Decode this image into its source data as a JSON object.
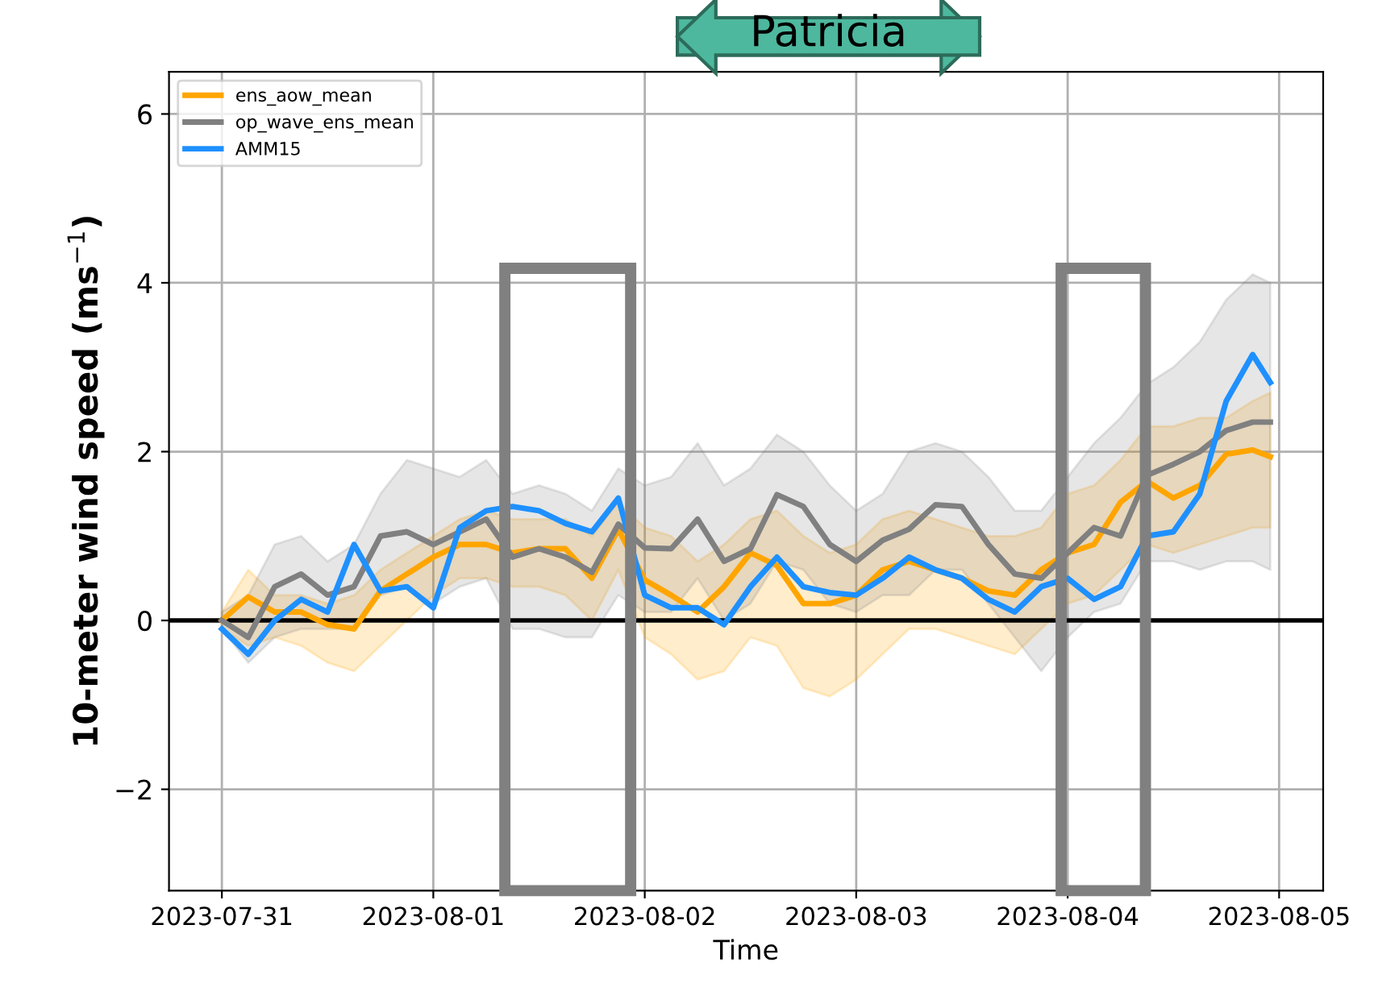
{
  "chart_data": {
    "type": "line",
    "x": [
      "2023-07-31T00:00",
      "2023-07-31T03:00",
      "2023-07-31T06:00",
      "2023-07-31T09:00",
      "2023-07-31T12:00",
      "2023-07-31T15:00",
      "2023-07-31T18:00",
      "2023-07-31T21:00",
      "2023-08-01T00:00",
      "2023-08-01T03:00",
      "2023-08-01T06:00",
      "2023-08-01T09:00",
      "2023-08-01T12:00",
      "2023-08-01T15:00",
      "2023-08-01T18:00",
      "2023-08-01T21:00",
      "2023-08-02T00:00",
      "2023-08-02T03:00",
      "2023-08-02T06:00",
      "2023-08-02T09:00",
      "2023-08-02T12:00",
      "2023-08-02T15:00",
      "2023-08-02T18:00",
      "2023-08-02T21:00",
      "2023-08-03T00:00",
      "2023-08-03T03:00",
      "2023-08-03T06:00",
      "2023-08-03T09:00",
      "2023-08-03T12:00",
      "2023-08-03T15:00",
      "2023-08-03T18:00",
      "2023-08-03T21:00",
      "2023-08-04T00:00",
      "2023-08-04T03:00",
      "2023-08-04T06:00",
      "2023-08-04T09:00",
      "2023-08-04T12:00",
      "2023-08-04T15:00",
      "2023-08-04T18:00",
      "2023-08-04T21:00",
      "2023-08-04T23:00"
    ],
    "series": [
      {
        "name": "ens_aow_mean",
        "color": "#ffa500",
        "values": [
          0,
          0.28,
          0.1,
          0.1,
          -0.05,
          -0.1,
          0.35,
          0.55,
          0.75,
          0.9,
          0.9,
          0.8,
          0.85,
          0.85,
          0.5,
          1.08,
          0.48,
          0.3,
          0.1,
          0.4,
          0.8,
          0.65,
          0.2,
          0.2,
          0.3,
          0.6,
          0.7,
          0.6,
          0.5,
          0.35,
          0.3,
          0.6,
          0.8,
          0.9,
          1.4,
          1.65,
          1.45,
          1.6,
          1.97,
          2.02,
          1.94
        ],
        "upper": [
          0.1,
          0.6,
          0.3,
          0.3,
          0.2,
          0.3,
          0.6,
          0.8,
          1.0,
          1.2,
          1.3,
          1.2,
          1.2,
          1.2,
          1.0,
          1.4,
          1.1,
          1.0,
          0.7,
          0.9,
          1.2,
          1.3,
          1.0,
          0.8,
          0.9,
          1.2,
          1.3,
          1.2,
          1.1,
          1.0,
          1.0,
          1.1,
          1.5,
          1.6,
          1.9,
          2.3,
          2.3,
          2.4,
          2.4,
          2.6,
          2.7
        ],
        "lower": [
          -0.1,
          -0.3,
          -0.2,
          -0.3,
          -0.5,
          -0.6,
          -0.3,
          0.0,
          0.3,
          0.5,
          0.5,
          0.4,
          0.4,
          0.3,
          0.0,
          0.6,
          -0.2,
          -0.4,
          -0.7,
          -0.6,
          -0.2,
          -0.3,
          -0.8,
          -0.9,
          -0.7,
          -0.4,
          -0.1,
          -0.1,
          -0.2,
          -0.3,
          -0.4,
          -0.1,
          0.2,
          0.3,
          0.6,
          0.9,
          0.8,
          0.9,
          1.0,
          1.1,
          1.1
        ]
      },
      {
        "name": "op_wave_ens_mean",
        "color": "#808080",
        "values": [
          0,
          -0.2,
          0.4,
          0.55,
          0.3,
          0.4,
          1.0,
          1.05,
          0.9,
          1.05,
          1.2,
          0.75,
          0.85,
          0.75,
          0.57,
          1.14,
          0.86,
          0.85,
          1.2,
          0.7,
          0.85,
          1.49,
          1.35,
          0.9,
          0.7,
          0.95,
          1.08,
          1.37,
          1.35,
          0.9,
          0.55,
          0.5,
          0.8,
          1.1,
          1.0,
          1.72,
          1.85,
          2.0,
          2.25,
          2.35,
          2.35
        ],
        "upper": [
          0.1,
          0.3,
          0.9,
          1.0,
          0.7,
          0.9,
          1.5,
          1.9,
          1.8,
          1.7,
          1.9,
          1.5,
          1.6,
          1.5,
          1.3,
          1.8,
          1.6,
          1.7,
          2.1,
          1.6,
          1.8,
          2.2,
          2.0,
          1.6,
          1.3,
          1.5,
          2.0,
          2.1,
          2.0,
          1.7,
          1.3,
          1.3,
          1.7,
          2.1,
          2.4,
          2.8,
          3.0,
          3.3,
          3.8,
          4.1,
          4.0
        ],
        "lower": [
          -0.1,
          -0.5,
          -0.2,
          -0.1,
          -0.1,
          -0.1,
          0.3,
          0.4,
          0.2,
          0.4,
          0.5,
          -0.1,
          -0.1,
          -0.2,
          -0.2,
          0.3,
          0.1,
          0.1,
          0.5,
          0.0,
          0.2,
          0.7,
          0.6,
          0.2,
          0.1,
          0.3,
          0.3,
          0.6,
          0.6,
          0.2,
          -0.2,
          -0.6,
          -0.2,
          0.1,
          0.2,
          0.7,
          0.7,
          0.6,
          0.7,
          0.7,
          0.6
        ]
      },
      {
        "name": "AMM15",
        "color": "#1e90ff",
        "values": [
          -0.1,
          -0.4,
          0.0,
          0.25,
          0.1,
          0.9,
          0.35,
          0.4,
          0.15,
          1.1,
          1.3,
          1.35,
          1.3,
          1.15,
          1.05,
          1.45,
          0.3,
          0.15,
          0.15,
          -0.05,
          0.4,
          0.75,
          0.4,
          0.33,
          0.3,
          0.5,
          0.75,
          0.6,
          0.5,
          0.25,
          0.1,
          0.4,
          0.5,
          0.25,
          0.4,
          1.0,
          1.05,
          1.5,
          2.6,
          3.15,
          2.82
        ]
      }
    ],
    "xlabel": "Time",
    "ylabel": "10-meter wind speed (ms$^{−1}$)",
    "xlim": [
      "2023-07-30T18:00",
      "2023-08-05T05:00"
    ],
    "xticks": [
      "2023-07-31",
      "2023-08-01",
      "2023-08-02",
      "2023-08-03",
      "2023-08-04",
      "2023-08-05"
    ],
    "ylim": [
      -3.2,
      6.5
    ],
    "yticks": [
      -2,
      0,
      2,
      4,
      6
    ],
    "ref_lines": [
      {
        "axis": "y",
        "value": 0,
        "color": "#000000"
      }
    ],
    "annotations": [
      "Patricia"
    ],
    "grid": true,
    "legend": "top left",
    "line_style": "solid",
    "marker": "none"
  }
}
